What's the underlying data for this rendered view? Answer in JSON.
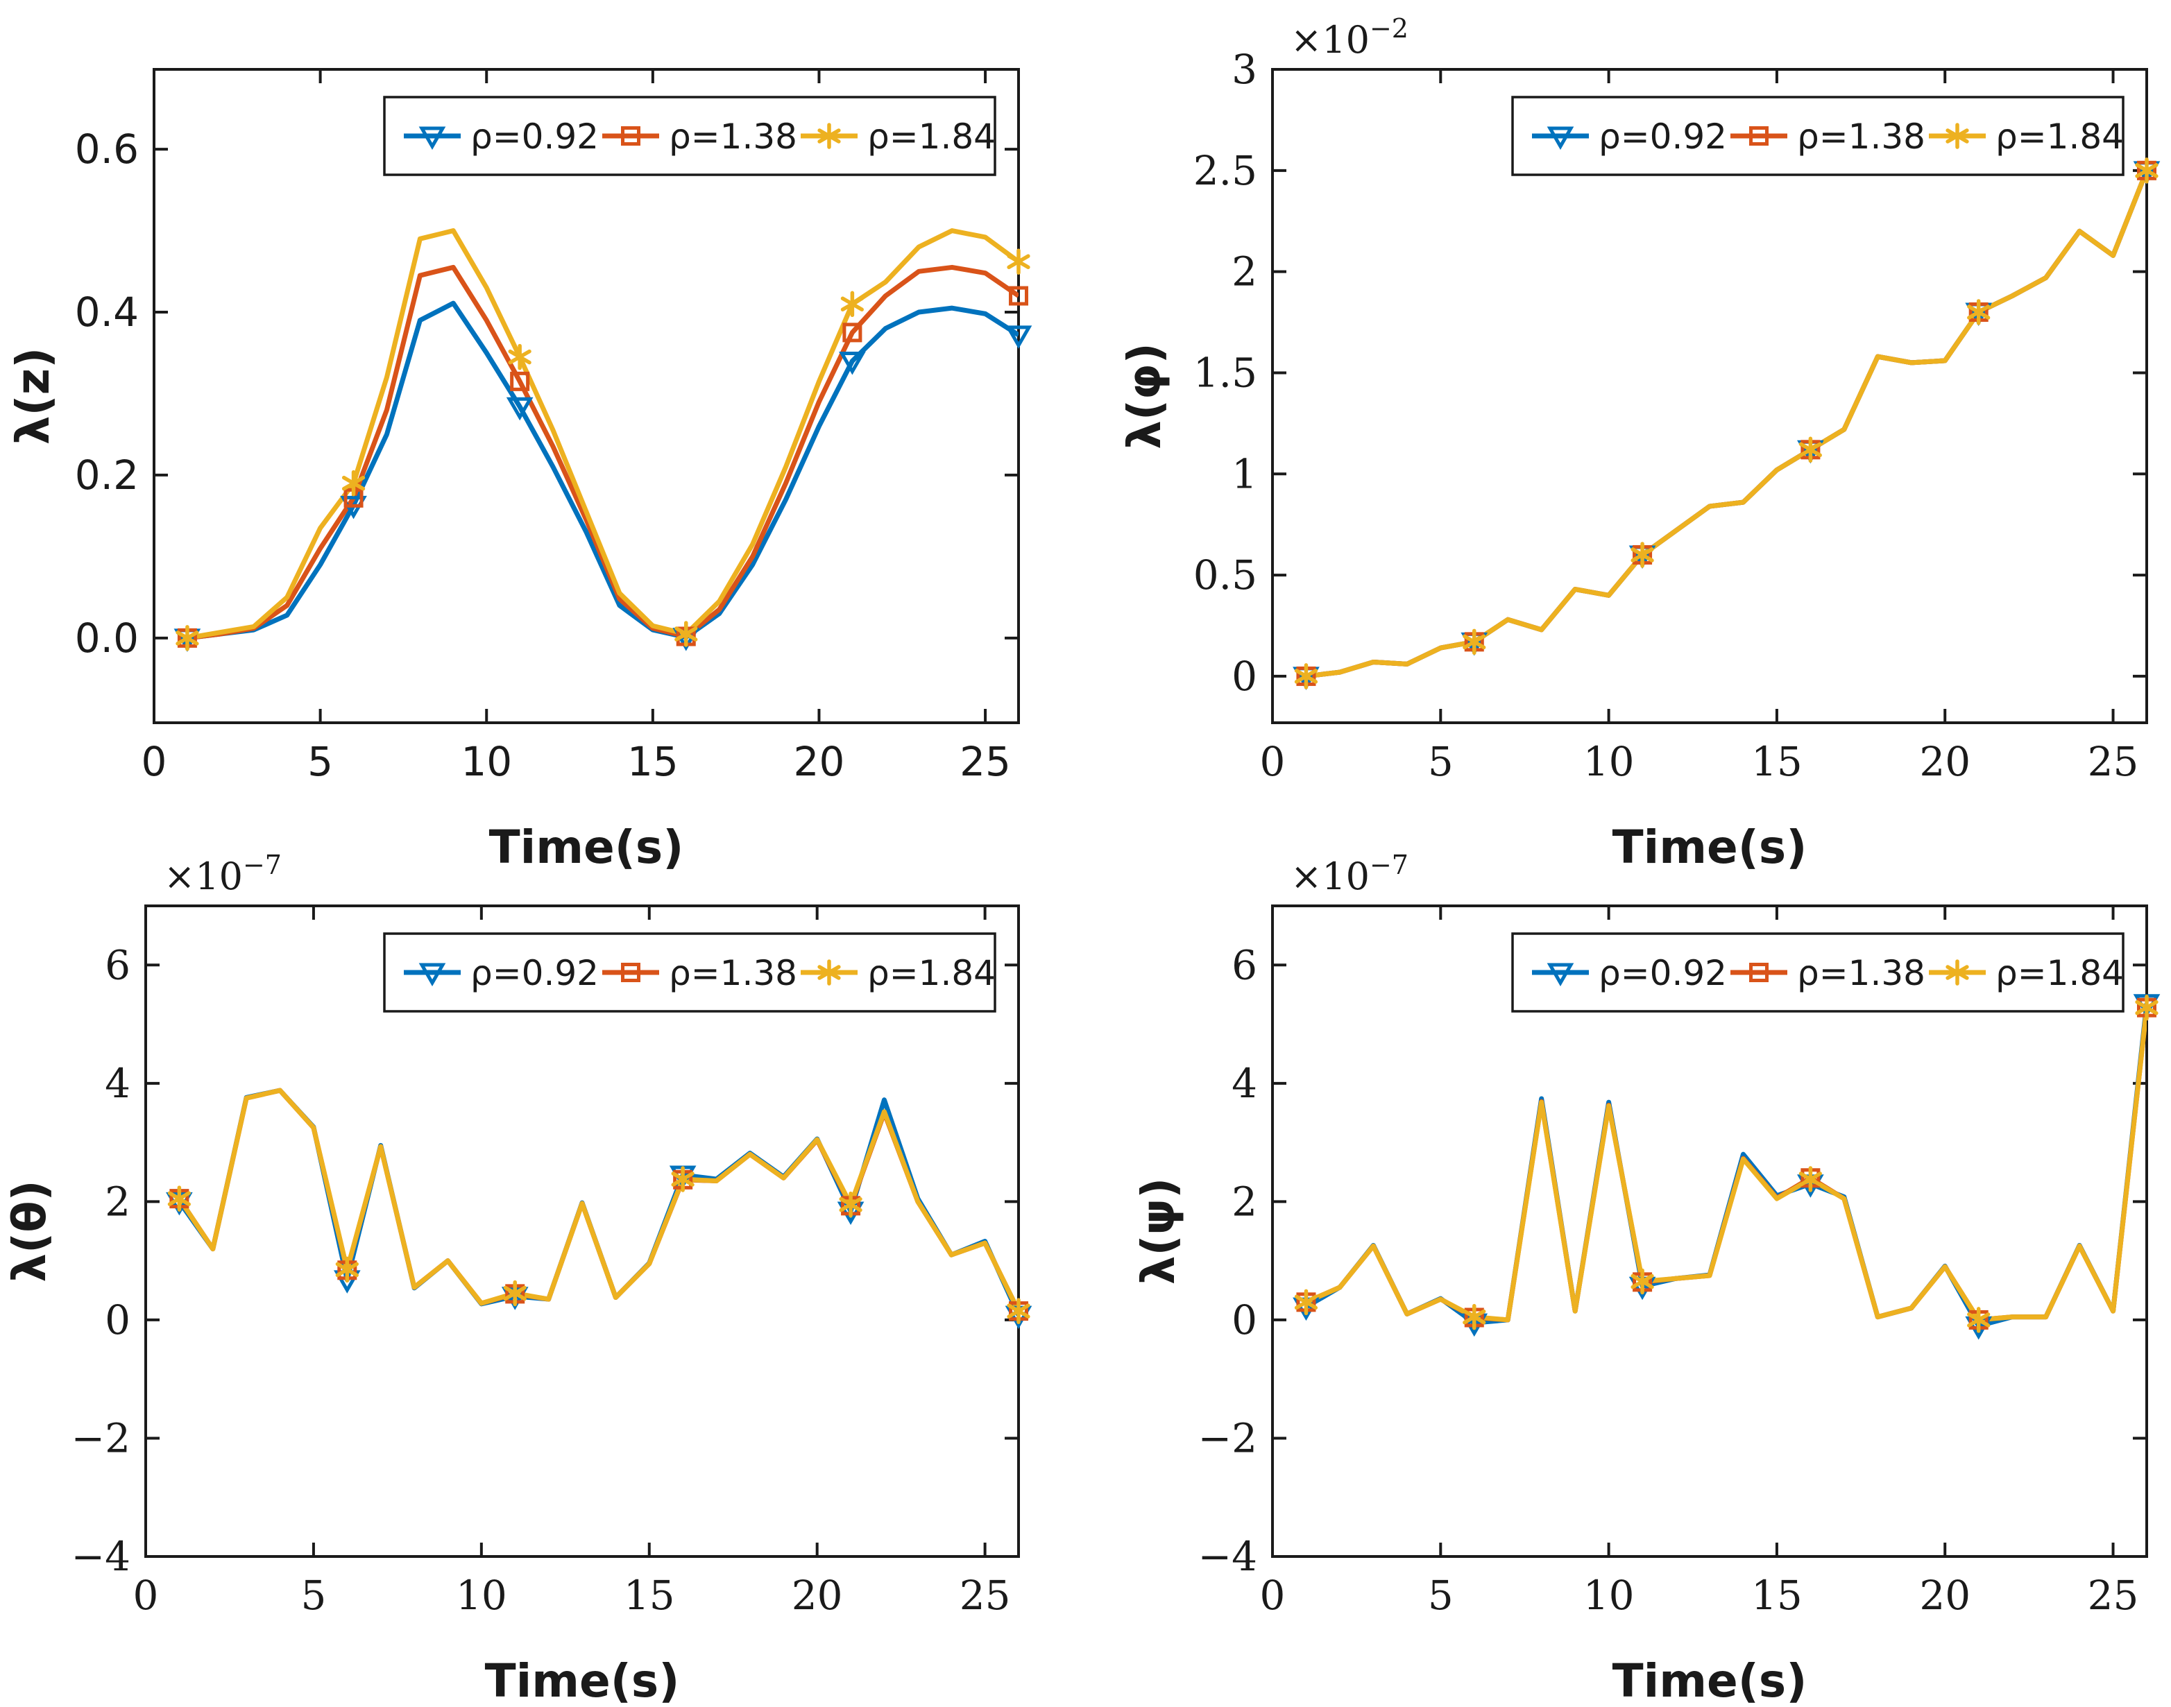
{
  "figure": {
    "background": "#ffffff",
    "axis_color": "#1a1a1a",
    "series_colors": {
      "rho_092": "#0072BD",
      "rho_138": "#D95319",
      "rho_184": "#EDB120"
    }
  },
  "legend_labels": [
    "ρ=0.92",
    "ρ=1.38",
    "ρ=1.84"
  ],
  "chart_data": [
    {
      "id": "lambda-z",
      "type": "line",
      "title": "",
      "xlabel": "Time(s)",
      "ylabel": "λ(z)",
      "x": [
        1,
        2,
        3,
        4,
        5,
        6,
        7,
        8,
        9,
        10,
        11,
        12,
        13,
        14,
        15,
        16,
        17,
        18,
        19,
        20,
        21,
        22,
        23,
        24,
        25,
        26
      ],
      "xlim": [
        0,
        26
      ],
      "ylim": [
        -0.104,
        0.698
      ],
      "xticks": [
        0,
        5,
        10,
        15,
        20,
        25
      ],
      "xtick_labels": [
        "0",
        "5",
        "10",
        "15",
        "20",
        "25"
      ],
      "yticks": [
        0,
        0.2,
        0.4,
        0.6
      ],
      "ytick_labels": [
        "0.0",
        "0.2",
        "0.4",
        "0.6"
      ],
      "offset_exponent": "",
      "serif_ticks": false,
      "grid": false,
      "legend": {
        "position": "northeast",
        "entries": [
          "ρ=0.92",
          "ρ=1.38",
          "ρ=1.84"
        ]
      },
      "marker_indices": [
        0,
        5,
        10,
        15,
        20,
        25
      ],
      "series": [
        {
          "name": "ρ=0.92",
          "color": "#0072BD",
          "marker": "triangle-down",
          "values": [
            0.0,
            0.005,
            0.01,
            0.028,
            0.09,
            0.163,
            0.25,
            0.39,
            0.411,
            0.35,
            0.284,
            0.21,
            0.13,
            0.04,
            0.01,
            0.001,
            0.03,
            0.09,
            0.17,
            0.26,
            0.34,
            0.38,
            0.4,
            0.405,
            0.398,
            0.372
          ]
        },
        {
          "name": "ρ=1.38",
          "color": "#D95319",
          "marker": "square",
          "values": [
            0.0,
            0.005,
            0.012,
            0.04,
            0.11,
            0.172,
            0.28,
            0.445,
            0.455,
            0.39,
            0.315,
            0.235,
            0.145,
            0.048,
            0.012,
            0.002,
            0.035,
            0.1,
            0.19,
            0.29,
            0.375,
            0.42,
            0.45,
            0.455,
            0.448,
            0.42
          ]
        },
        {
          "name": "ρ=1.84",
          "color": "#EDB120",
          "marker": "asterisk",
          "values": [
            0.0,
            0.007,
            0.014,
            0.05,
            0.135,
            0.19,
            0.32,
            0.49,
            0.5,
            0.43,
            0.345,
            0.255,
            0.155,
            0.055,
            0.015,
            0.005,
            0.045,
            0.115,
            0.21,
            0.315,
            0.41,
            0.437,
            0.48,
            0.5,
            0.492,
            0.462
          ]
        }
      ]
    },
    {
      "id": "lambda-phi",
      "type": "line",
      "title": "",
      "xlabel": "Time(s)",
      "ylabel": "λ(φ)",
      "value_scale": "1e-2",
      "x": [
        1,
        2,
        3,
        4,
        5,
        6,
        7,
        8,
        9,
        10,
        11,
        12,
        13,
        14,
        15,
        16,
        17,
        18,
        19,
        20,
        21,
        22,
        23,
        24,
        25,
        26
      ],
      "xlim": [
        0,
        26
      ],
      "ylim": [
        -0.23,
        3.0
      ],
      "xticks": [
        0,
        5,
        10,
        15,
        20,
        25
      ],
      "xtick_labels": [
        "0",
        "5",
        "10",
        "15",
        "20",
        "25"
      ],
      "yticks": [
        0,
        0.5,
        1,
        1.5,
        2,
        2.5,
        3
      ],
      "ytick_labels": [
        "0",
        "0.5",
        "1",
        "1.5",
        "2",
        "2.5",
        "3"
      ],
      "offset_exponent": "−2",
      "serif_ticks": true,
      "grid": false,
      "legend": {
        "position": "northeast",
        "entries": [
          "ρ=0.92",
          "ρ=1.38",
          "ρ=1.84"
        ]
      },
      "marker_indices": [
        0,
        5,
        10,
        15,
        20,
        25
      ],
      "series": [
        {
          "name": "ρ=0.92",
          "color": "#0072BD",
          "marker": "triangle-down",
          "values": [
            0.0,
            0.02,
            0.07,
            0.06,
            0.14,
            0.17,
            0.28,
            0.23,
            0.43,
            0.4,
            0.6,
            0.72,
            0.84,
            0.86,
            1.02,
            1.12,
            1.22,
            1.58,
            1.55,
            1.56,
            1.8,
            1.88,
            1.97,
            2.2,
            2.08,
            2.5
          ]
        },
        {
          "name": "ρ=1.38",
          "color": "#D95319",
          "marker": "square",
          "values": [
            0.0,
            0.02,
            0.07,
            0.06,
            0.14,
            0.17,
            0.28,
            0.23,
            0.43,
            0.4,
            0.6,
            0.72,
            0.84,
            0.86,
            1.02,
            1.12,
            1.22,
            1.58,
            1.55,
            1.56,
            1.8,
            1.88,
            1.97,
            2.2,
            2.08,
            2.5
          ]
        },
        {
          "name": "ρ=1.84",
          "color": "#EDB120",
          "marker": "asterisk",
          "values": [
            0.0,
            0.02,
            0.07,
            0.06,
            0.14,
            0.17,
            0.28,
            0.23,
            0.43,
            0.4,
            0.6,
            0.72,
            0.84,
            0.86,
            1.02,
            1.12,
            1.22,
            1.58,
            1.55,
            1.56,
            1.8,
            1.88,
            1.97,
            2.2,
            2.08,
            2.5
          ]
        }
      ]
    },
    {
      "id": "lambda-theta",
      "type": "line",
      "title": "",
      "xlabel": "Time(s)",
      "ylabel": "λ(θ)",
      "value_scale": "1e-7",
      "x": [
        1,
        2,
        3,
        4,
        5,
        6,
        7,
        8,
        9,
        10,
        11,
        12,
        13,
        14,
        15,
        16,
        17,
        18,
        19,
        20,
        21,
        22,
        23,
        24,
        25,
        26
      ],
      "xlim": [
        0,
        26
      ],
      "ylim": [
        -4,
        7.0
      ],
      "xticks": [
        0,
        5,
        10,
        15,
        20,
        25
      ],
      "xtick_labels": [
        "0",
        "5",
        "10",
        "15",
        "20",
        "25"
      ],
      "yticks": [
        -4,
        -2,
        0,
        2,
        4,
        6
      ],
      "ytick_labels": [
        "−4",
        "−2",
        "0",
        "2",
        "4",
        "6"
      ],
      "offset_exponent": "−7",
      "serif_ticks": true,
      "grid": false,
      "legend": {
        "position": "northeast",
        "entries": [
          "ρ=0.92",
          "ρ=1.38",
          "ρ=1.84"
        ]
      },
      "marker_indices": [
        0,
        5,
        10,
        15,
        20,
        25
      ],
      "series": [
        {
          "name": "ρ=0.92",
          "color": "#0072BD",
          "marker": "triangle-down",
          "values": [
            2.0,
            1.2,
            3.76,
            3.88,
            3.26,
            0.68,
            2.95,
            0.54,
            1.0,
            0.27,
            0.4,
            0.35,
            1.98,
            0.38,
            0.96,
            2.45,
            2.38,
            2.82,
            2.42,
            3.06,
            1.84,
            3.72,
            2.05,
            1.1,
            1.33,
            0.08
          ]
        },
        {
          "name": "ρ=1.38",
          "color": "#D95319",
          "marker": "square",
          "values": [
            2.05,
            1.2,
            3.75,
            3.88,
            3.25,
            0.84,
            2.93,
            0.55,
            1.0,
            0.28,
            0.44,
            0.35,
            1.97,
            0.38,
            0.95,
            2.37,
            2.35,
            2.8,
            2.4,
            3.04,
            1.93,
            3.5,
            2.0,
            1.1,
            1.3,
            0.15
          ]
        },
        {
          "name": "ρ=1.84",
          "color": "#EDB120",
          "marker": "asterisk",
          "values": [
            2.05,
            1.2,
            3.75,
            3.88,
            3.25,
            0.85,
            2.93,
            0.55,
            1.0,
            0.28,
            0.45,
            0.35,
            1.97,
            0.38,
            0.95,
            2.38,
            2.35,
            2.8,
            2.4,
            3.05,
            1.95,
            3.52,
            2.0,
            1.1,
            1.3,
            0.15
          ]
        }
      ]
    },
    {
      "id": "lambda-psi",
      "type": "line",
      "title": "",
      "xlabel": "Time(s)",
      "ylabel": "λ(ψ)",
      "value_scale": "1e-7",
      "x": [
        1,
        2,
        3,
        4,
        5,
        6,
        7,
        8,
        9,
        10,
        11,
        12,
        13,
        14,
        15,
        16,
        17,
        18,
        19,
        20,
        21,
        22,
        23,
        24,
        25,
        26
      ],
      "xlim": [
        0,
        26
      ],
      "ylim": [
        -4,
        7.0
      ],
      "xticks": [
        0,
        5,
        10,
        15,
        20,
        25
      ],
      "xtick_labels": [
        "0",
        "5",
        "10",
        "15",
        "20",
        "25"
      ],
      "yticks": [
        -4,
        -2,
        0,
        2,
        4,
        6
      ],
      "ytick_labels": [
        "−4",
        "−2",
        "0",
        "2",
        "4",
        "6"
      ],
      "offset_exponent": "−7",
      "serif_ticks": true,
      "grid": false,
      "legend": {
        "position": "northeast",
        "entries": [
          "ρ=0.92",
          "ρ=1.38",
          "ρ=1.84"
        ]
      },
      "marker_indices": [
        0,
        5,
        10,
        15,
        20,
        25
      ],
      "series": [
        {
          "name": "ρ=0.92",
          "color": "#0072BD",
          "marker": "triangle-down",
          "values": [
            0.22,
            0.55,
            1.26,
            0.1,
            0.36,
            -0.05,
            0.0,
            3.74,
            0.15,
            3.68,
            0.57,
            0.7,
            0.76,
            2.8,
            2.1,
            2.3,
            2.08,
            0.05,
            0.2,
            0.91,
            -0.1,
            0.05,
            0.05,
            1.26,
            0.15,
            5.35
          ]
        },
        {
          "name": "ρ=1.38",
          "color": "#D95319",
          "marker": "square",
          "values": [
            0.3,
            0.55,
            1.25,
            0.1,
            0.35,
            0.04,
            0.0,
            3.69,
            0.15,
            3.63,
            0.64,
            0.7,
            0.75,
            2.73,
            2.06,
            2.4,
            2.05,
            0.05,
            0.2,
            0.9,
            0.0,
            0.05,
            0.05,
            1.25,
            0.15,
            5.28
          ]
        },
        {
          "name": "ρ=1.84",
          "color": "#EDB120",
          "marker": "asterisk",
          "values": [
            0.3,
            0.55,
            1.25,
            0.1,
            0.35,
            0.05,
            0.0,
            3.68,
            0.15,
            3.62,
            0.65,
            0.7,
            0.75,
            2.72,
            2.05,
            2.38,
            2.05,
            0.05,
            0.2,
            0.9,
            0.0,
            0.05,
            0.05,
            1.25,
            0.15,
            5.28
          ]
        }
      ]
    }
  ]
}
